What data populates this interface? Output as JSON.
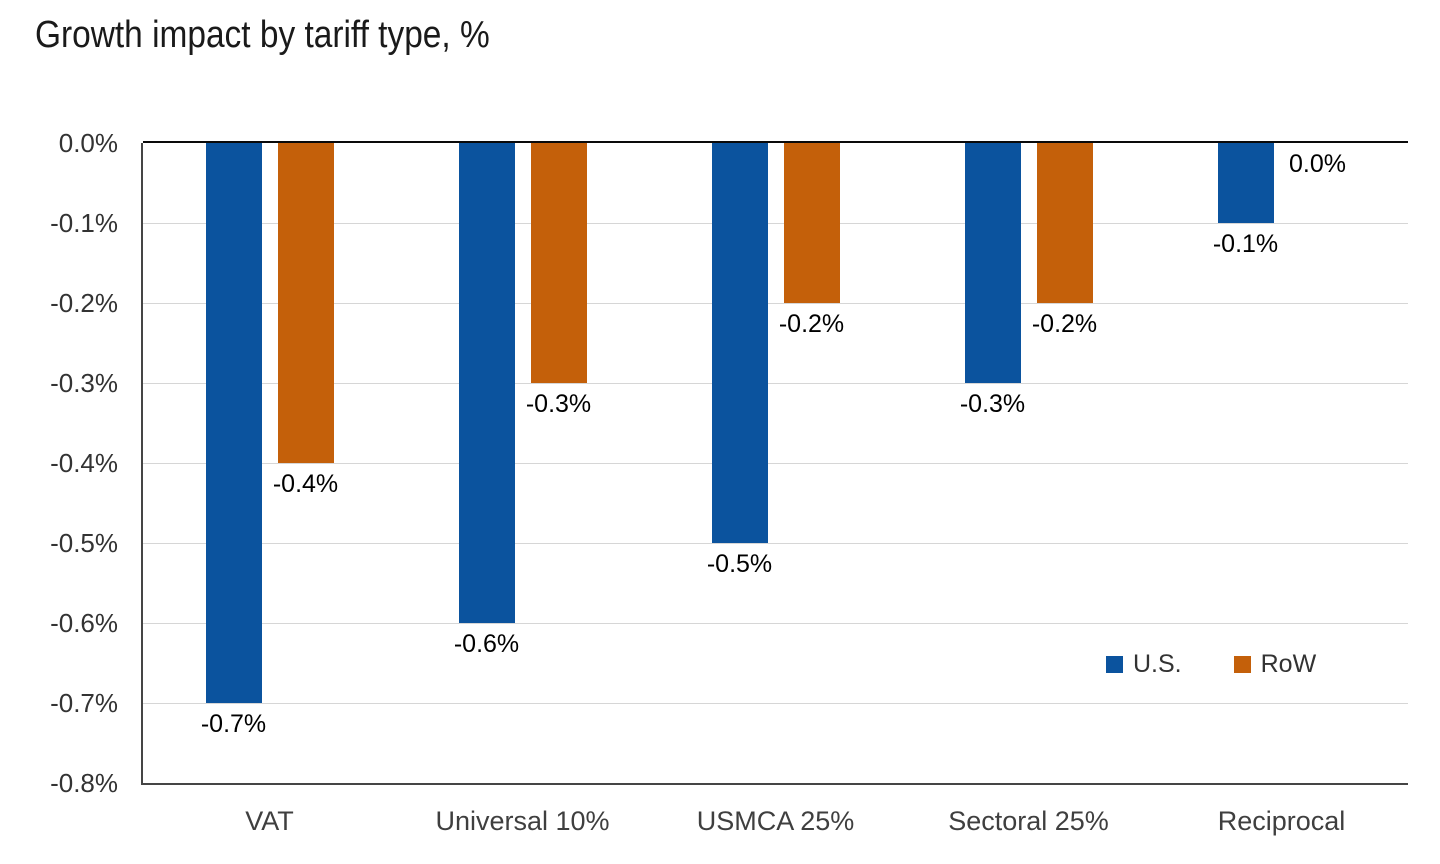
{
  "title": "Growth impact by tariff type, %",
  "chart_data": {
    "type": "bar",
    "orientation": "vertical",
    "title": "Growth impact by tariff type, %",
    "categories": [
      "VAT",
      "Universal 10%",
      "USMCA 25%",
      "Sectoral 25%",
      "Reciprocal"
    ],
    "series": [
      {
        "key": "us",
        "name": "U.S.",
        "color": "#0b539e",
        "values": [
          -0.7,
          -0.6,
          -0.5,
          -0.3,
          -0.1
        ],
        "data_labels": [
          "-0.7%",
          "-0.6%",
          "-0.5%",
          "-0.3%",
          "-0.1%"
        ]
      },
      {
        "key": "row",
        "name": "RoW",
        "color": "#c4600a",
        "values": [
          -0.4,
          -0.3,
          -0.2,
          -0.2,
          0.0
        ],
        "data_labels": [
          "-0.4%",
          "-0.3%",
          "-0.2%",
          "-0.2%",
          "0.0%"
        ]
      }
    ],
    "y_axis": {
      "min": -0.8,
      "max": 0.0,
      "step": 0.1,
      "unit": "%",
      "tick_labels": [
        "0.0%",
        "-0.1%",
        "-0.2%",
        "-0.3%",
        "-0.4%",
        "-0.5%",
        "-0.6%",
        "-0.7%",
        "-0.8%"
      ]
    },
    "legend": {
      "position": "inside-bottom-right",
      "entries": [
        "U.S.",
        "RoW"
      ]
    },
    "grid": true,
    "colors": {
      "us_bar": "#0b539e",
      "row_bar": "#c4600a",
      "grid_line": "#d6d6d6",
      "zero_line": "#0a0a0a",
      "axis_line": "#454545",
      "title_text": "#1a1a1a",
      "tick_text": "#333333",
      "category_text": "#3f3f3f",
      "data_label_text": "#000000",
      "legend_text": "#333333",
      "background": "#ffffff"
    }
  }
}
